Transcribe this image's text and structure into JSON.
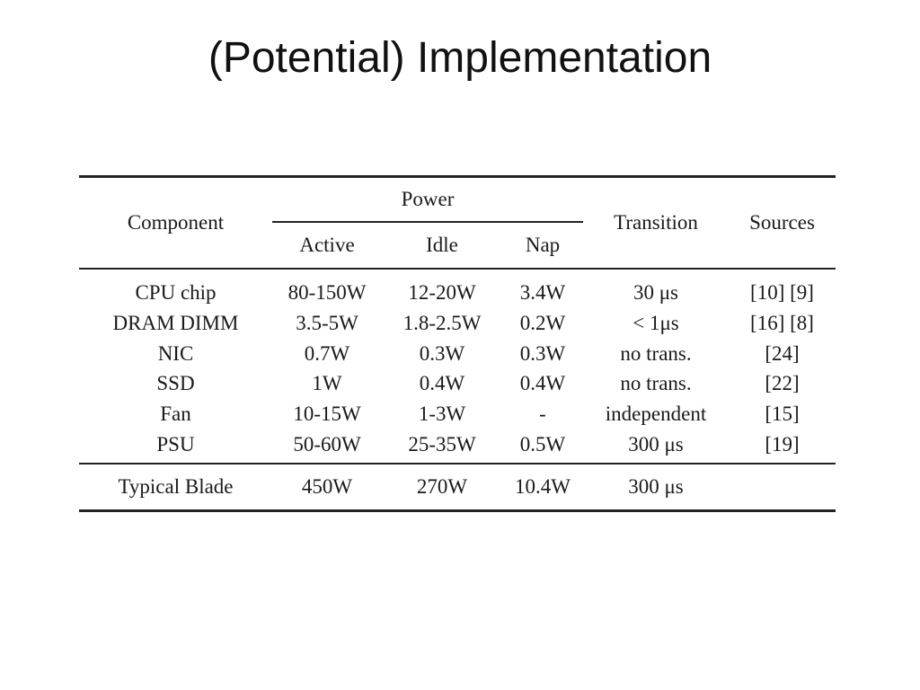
{
  "slide": {
    "title": "(Potential) Implementation"
  },
  "table": {
    "headers": {
      "component": "Component",
      "power": "Power",
      "active": "Active",
      "idle": "Idle",
      "nap": "Nap",
      "transition": "Transition",
      "sources": "Sources"
    },
    "rows": [
      {
        "component": "CPU chip",
        "active": "80-150W",
        "idle": "12-20W",
        "nap": "3.4W",
        "transition": "30 μs",
        "sources": "[10] [9]"
      },
      {
        "component": "DRAM DIMM",
        "active": "3.5-5W",
        "idle": "1.8-2.5W",
        "nap": "0.2W",
        "transition": "< 1μs",
        "sources": "[16] [8]"
      },
      {
        "component": "NIC",
        "active": "0.7W",
        "idle": "0.3W",
        "nap": "0.3W",
        "transition": "no trans.",
        "sources": "[24]"
      },
      {
        "component": "SSD",
        "active": "1W",
        "idle": "0.4W",
        "nap": "0.4W",
        "transition": "no trans.",
        "sources": "[22]"
      },
      {
        "component": "Fan",
        "active": "10-15W",
        "idle": "1-3W",
        "nap": "-",
        "transition": "independent",
        "sources": "[15]"
      },
      {
        "component": "PSU",
        "active": "50-60W",
        "idle": "25-35W",
        "nap": "0.5W",
        "transition": "300 μs",
        "sources": "[19]"
      }
    ],
    "footer": {
      "component": "Typical Blade",
      "active": "450W",
      "idle": "270W",
      "nap": "10.4W",
      "transition": "300 μs",
      "sources": ""
    }
  }
}
